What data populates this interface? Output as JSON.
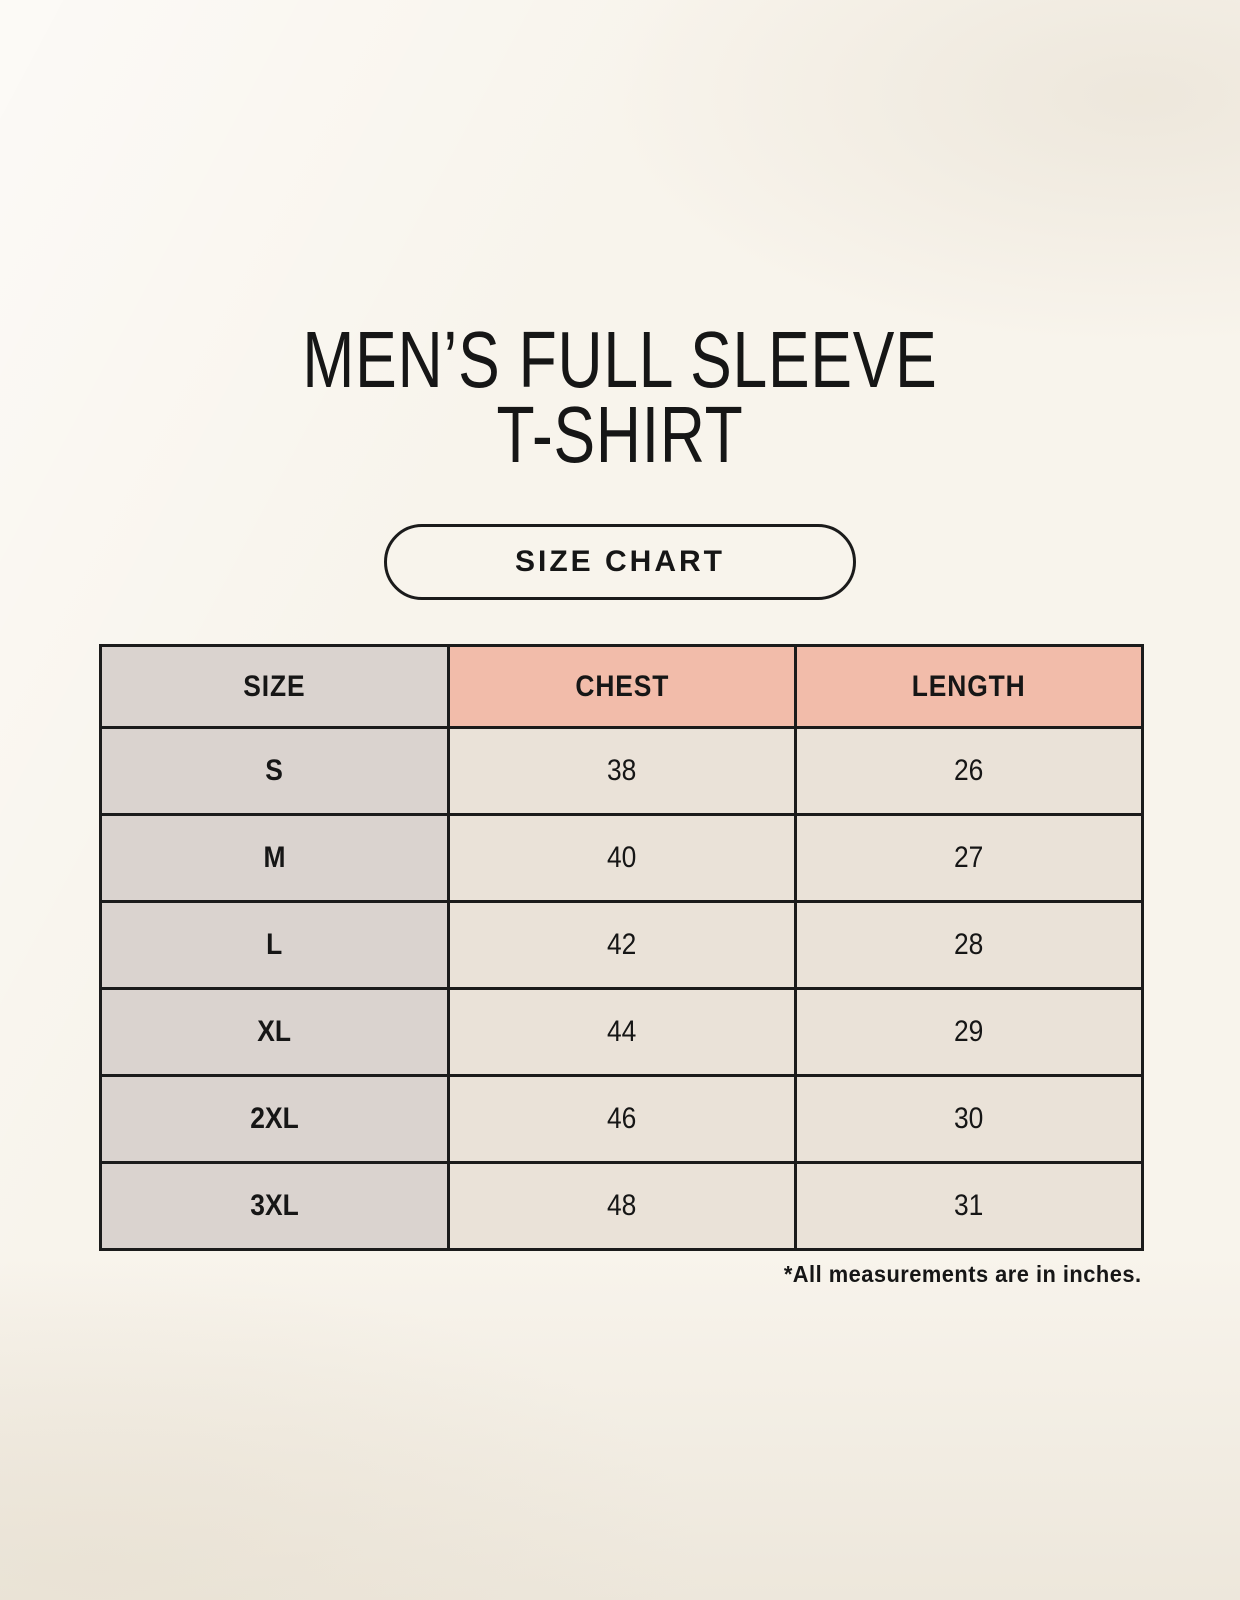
{
  "header": {
    "title_line1": "MEN’S FULL SLEEVE",
    "title_line2": "T-SHIRT",
    "size_chart_button_label": "SIZE CHART"
  },
  "table": {
    "columns": [
      "SIZE",
      "CHEST",
      "LENGTH"
    ],
    "rows": [
      {
        "size": "S",
        "chest": "38",
        "length": "26"
      },
      {
        "size": "M",
        "chest": "40",
        "length": "27"
      },
      {
        "size": "L",
        "chest": "42",
        "length": "28"
      },
      {
        "size": "XL",
        "chest": "44",
        "length": "29"
      },
      {
        "size": "2XL",
        "chest": "46",
        "length": "30"
      },
      {
        "size": "3XL",
        "chest": "48",
        "length": "31"
      }
    ]
  },
  "footnote": "*All measurements are in inches.",
  "colors": {
    "background": "#f8f4ec",
    "table_border": "#1b1b1b",
    "size_column_gray": "#dad3cf",
    "header_pink": "#f2bcaa",
    "value_cell_cream": "#eae2d8",
    "text": "#161616"
  },
  "chart_data": {
    "type": "table",
    "title": "MEN’S FULL SLEEVE T-SHIRT — SIZE CHART",
    "columns": [
      "SIZE",
      "CHEST",
      "LENGTH"
    ],
    "units": "inches",
    "rows": [
      [
        "S",
        38,
        26
      ],
      [
        "M",
        40,
        27
      ],
      [
        "L",
        42,
        28
      ],
      [
        "XL",
        44,
        29
      ],
      [
        "2XL",
        46,
        30
      ],
      [
        "3XL",
        48,
        31
      ]
    ],
    "note": "*All measurements are in inches."
  }
}
